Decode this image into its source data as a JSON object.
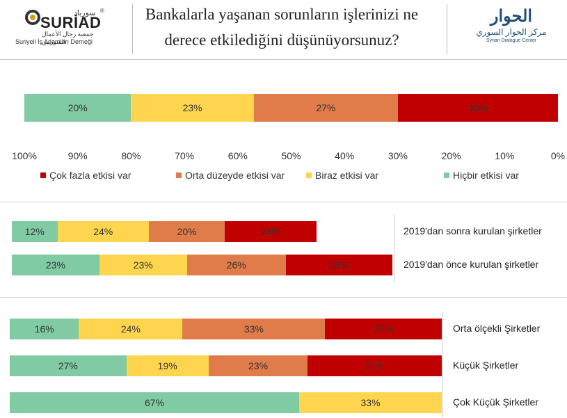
{
  "header": {
    "title_line1": "Bankalarla yaşanan sorunların işlerinizi ne",
    "title_line2": "derece etkilediğini düşünüyorsunuz?",
    "left_logo": {
      "arabic_top": "سورياد",
      "brand": "SURİAD",
      "registered_mark": "®",
      "arabic_sub": "جمعية رجال الأعمال السوريين",
      "turkish_sub": "Suriyeli İş Adamları Derneği"
    },
    "right_logo": {
      "arabic_top": "الحوار",
      "arabic_sub": "مركز الحوار السوري",
      "english_sub": "Syrian Dialogue Center"
    }
  },
  "colors": {
    "cok_fazla": "#C00000",
    "orta": "#E07B4A",
    "biraz": "#FFD54F",
    "hicbir": "#80CBA4"
  },
  "chart_data": [
    {
      "type": "bar",
      "orientation": "horizontal-stacked",
      "x_axis_reversed": true,
      "xlim": [
        0,
        100
      ],
      "x_ticks": [
        "100%",
        "90%",
        "80%",
        "70%",
        "60%",
        "50%",
        "40%",
        "30%",
        "20%",
        "10%",
        "0%"
      ],
      "legend": [
        {
          "name": "Çok fazla etkisi var",
          "color": "#C00000"
        },
        {
          "name": "Orta düzeyde etkisi var",
          "color": "#E07B4A"
        },
        {
          "name": "Biraz etkisi var",
          "color": "#FFD54F"
        },
        {
          "name": "Hiçbir etkisi var",
          "color": "#80CBA4"
        }
      ],
      "categories": [
        ""
      ],
      "series": [
        {
          "name": "Çok fazla etkisi var",
          "values": [
            30
          ],
          "labels": [
            "30%"
          ]
        },
        {
          "name": "Orta düzeyde etkisi var",
          "values": [
            27
          ],
          "labels": [
            "27%"
          ]
        },
        {
          "name": "Biraz etkisi var",
          "values": [
            23
          ],
          "labels": [
            "23%"
          ]
        },
        {
          "name": "Hiçbir etkisi var",
          "values": [
            20
          ],
          "labels": [
            "20%"
          ]
        }
      ]
    },
    {
      "type": "bar",
      "orientation": "horizontal-stacked",
      "categories": [
        "2019'dan sonra kurulan şirketler",
        "2019'dan önce kurulan şirketler"
      ],
      "series": [
        {
          "name": "Çok fazla etkisi var",
          "values": [
            24,
            28
          ],
          "labels": [
            "24%",
            "28%"
          ]
        },
        {
          "name": "Orta düzeyde etkisi var",
          "values": [
            20,
            26
          ],
          "labels": [
            "20%",
            "26%"
          ]
        },
        {
          "name": "Biraz etkisi var",
          "values": [
            24,
            23
          ],
          "labels": [
            "24%",
            "23%"
          ]
        },
        {
          "name": "Hiçbir etkisi var",
          "values": [
            12,
            23
          ],
          "labels": [
            "12%",
            "23%"
          ]
        }
      ]
    },
    {
      "type": "bar",
      "orientation": "horizontal-stacked",
      "categories": [
        "Orta ölçekli Şirketler",
        "Küçük Şirketler",
        "Çok Küçük Şirketler"
      ],
      "series": [
        {
          "name": "Çok fazla etkisi var",
          "values": [
            27,
            31,
            0
          ],
          "labels": [
            "27%",
            "31%",
            ""
          ]
        },
        {
          "name": "Orta düzeyde etkisi var",
          "values": [
            33,
            23,
            0
          ],
          "labels": [
            "33%",
            "23%",
            ""
          ]
        },
        {
          "name": "Biraz etkisi var",
          "values": [
            24,
            19,
            33
          ],
          "labels": [
            "24%",
            "19%",
            "33%"
          ]
        },
        {
          "name": "Hiçbir etkisi var",
          "values": [
            16,
            27,
            67
          ],
          "labels": [
            "16%",
            "27%",
            "67%"
          ]
        }
      ]
    }
  ]
}
